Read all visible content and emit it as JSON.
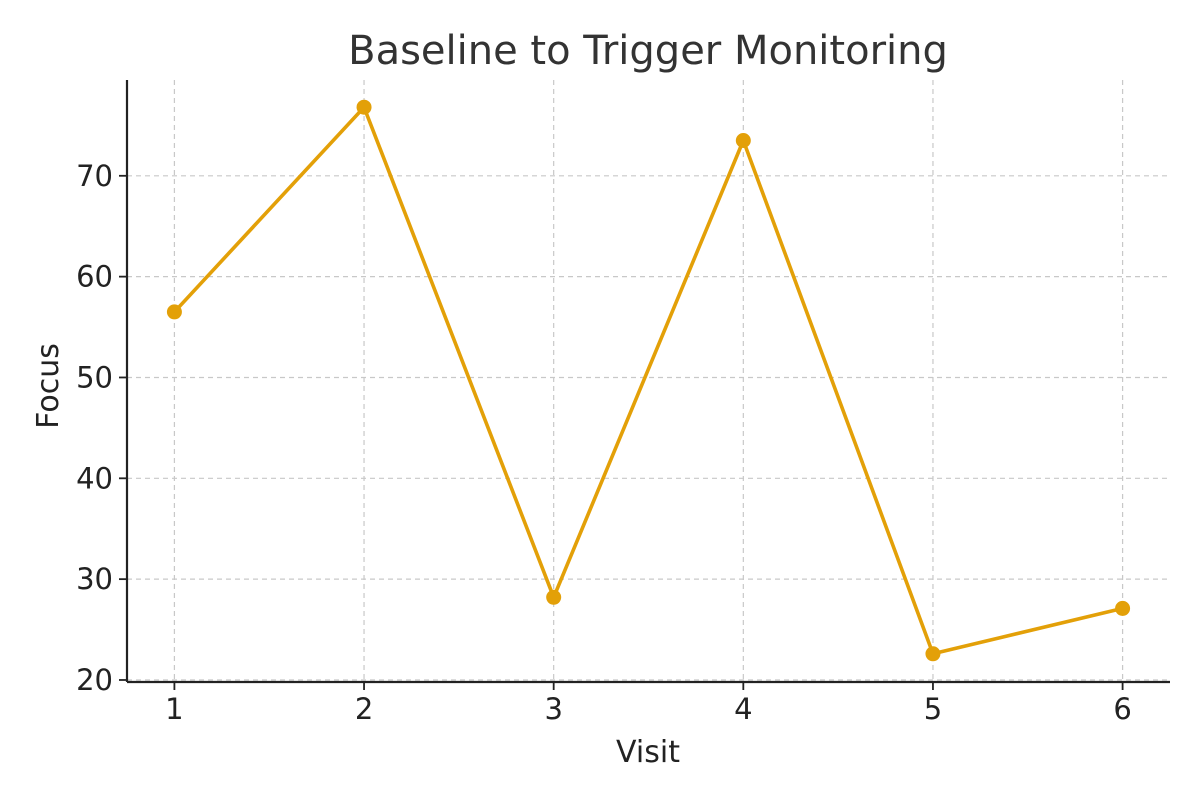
{
  "chart_data": {
    "type": "line",
    "title": "Baseline to Trigger Monitoring",
    "xlabel": "Visit",
    "ylabel": "Focus",
    "x": [
      1,
      2,
      3,
      4,
      5,
      6
    ],
    "series": [
      {
        "values": [
          56.5,
          76.8,
          28.2,
          73.5,
          22.6,
          27.1
        ],
        "color": "#E3A008"
      }
    ],
    "xlim": [
      0.75,
      6.25
    ],
    "ylim": [
      19.8,
      79.5
    ],
    "xticks": [
      1,
      2,
      3,
      4,
      5,
      6
    ],
    "yticks": [
      20,
      30,
      40,
      50,
      60,
      70
    ],
    "grid": true,
    "legend": "none"
  }
}
